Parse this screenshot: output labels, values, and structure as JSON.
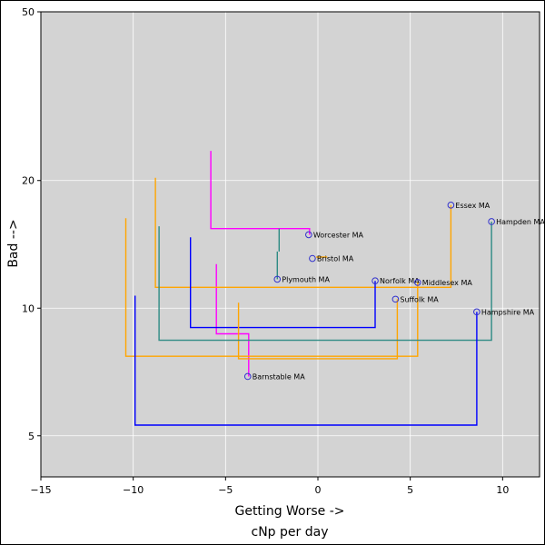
{
  "chart_data": {
    "type": "scatter",
    "title": "",
    "xlabel": "Getting Worse ->",
    "xlabel2": "cNp per day",
    "ylabel": "Bad -->",
    "xlim": [
      -15,
      12
    ],
    "ylim": [
      4,
      50
    ],
    "y_scale": "log",
    "grid": true,
    "background": "#d3d3d3",
    "point_color": "#3333cc",
    "x_ticks": [
      {
        "value": -15,
        "label": "−15"
      },
      {
        "value": -10,
        "label": "−10"
      },
      {
        "value": -5,
        "label": "−5"
      },
      {
        "value": 0,
        "label": "0"
      },
      {
        "value": 5,
        "label": "5"
      },
      {
        "value": 10,
        "label": "10"
      }
    ],
    "y_ticks": [
      {
        "value": 5,
        "label": "5"
      },
      {
        "value": 10,
        "label": "10"
      },
      {
        "value": 20,
        "label": "20"
      },
      {
        "value": 50,
        "label": "50"
      }
    ],
    "points": [
      {
        "label": "Essex MA",
        "x": 7.2,
        "y": 17.5
      },
      {
        "label": "Hampden MA",
        "x": 9.4,
        "y": 16.0
      },
      {
        "label": "Worcester MA",
        "x": -0.5,
        "y": 14.9
      },
      {
        "label": "Bristol MA",
        "x": -0.3,
        "y": 13.1
      },
      {
        "label": "Plymouth MA",
        "x": -2.2,
        "y": 11.7
      },
      {
        "label": "Norfolk MA",
        "x": 3.1,
        "y": 11.6
      },
      {
        "label": "Middlesex MA",
        "x": 5.4,
        "y": 11.5
      },
      {
        "label": "Suffolk MA",
        "x": 4.2,
        "y": 10.5
      },
      {
        "label": "Hampshire MA",
        "x": 8.6,
        "y": 9.8
      },
      {
        "label": "Barnstable MA",
        "x": -3.8,
        "y": 6.9
      }
    ],
    "tree_lines": [
      {
        "color": "#ff00ff",
        "points": [
          [
            -5.8,
            23.5
          ],
          [
            -5.8,
            15.4
          ],
          [
            -0.45,
            15.4
          ],
          [
            -0.45,
            14.9
          ]
        ]
      },
      {
        "color": "#ff00ff",
        "points": [
          [
            -5.5,
            12.7
          ],
          [
            -5.5,
            8.7
          ],
          [
            -3.75,
            8.7
          ],
          [
            -3.75,
            6.9
          ]
        ]
      },
      {
        "color": "#ffa500",
        "points": [
          [
            -0.1,
            13.2
          ],
          [
            0.5,
            13.2
          ]
        ]
      },
      {
        "color": "#2e8b84",
        "points": [
          [
            -2.1,
            15.4
          ],
          [
            -2.1,
            13.6
          ]
        ]
      },
      {
        "color": "#2e8b84",
        "points": [
          [
            -2.2,
            13.6
          ],
          [
            -2.2,
            11.7
          ]
        ]
      },
      {
        "color": "#ffa500",
        "points": [
          [
            -8.8,
            20.3
          ],
          [
            -8.8,
            11.2
          ],
          [
            7.2,
            11.2
          ],
          [
            7.2,
            17.5
          ]
        ]
      },
      {
        "color": "#0000ff",
        "points": [
          [
            -6.9,
            14.7
          ],
          [
            -6.9,
            9.0
          ],
          [
            3.1,
            9.0
          ],
          [
            3.1,
            11.6
          ]
        ]
      },
      {
        "color": "#ffa500",
        "points": [
          [
            -4.3,
            10.3
          ],
          [
            -4.3,
            7.6
          ],
          [
            4.3,
            7.6
          ],
          [
            4.3,
            10.5
          ]
        ]
      },
      {
        "color": "#ffa500",
        "points": [
          [
            -10.4,
            16.3
          ],
          [
            -10.4,
            7.7
          ],
          [
            5.4,
            7.7
          ],
          [
            5.4,
            11.5
          ]
        ]
      },
      {
        "color": "#2e8b84",
        "points": [
          [
            -8.6,
            15.6
          ],
          [
            -8.6,
            8.4
          ],
          [
            9.4,
            8.4
          ],
          [
            9.4,
            16.0
          ]
        ]
      },
      {
        "color": "#0000ff",
        "points": [
          [
            -9.9,
            10.7
          ],
          [
            -9.9,
            5.3
          ],
          [
            8.6,
            5.3
          ],
          [
            8.6,
            9.8
          ]
        ]
      }
    ]
  }
}
